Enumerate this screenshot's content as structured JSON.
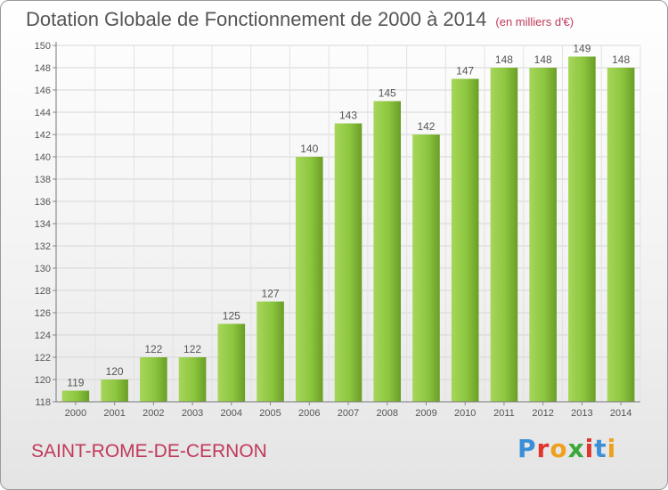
{
  "header": {
    "title": "Dotation Globale de Fonctionnement de 2000 à 2014",
    "subtitle": "(en milliers d'€)"
  },
  "footer": {
    "commune": "SAINT-ROME-DE-CERNON",
    "logo_text": "Proxiti",
    "logo_colors": [
      "#3a8fd6",
      "#e0352b",
      "#f0a020",
      "#3aa83a",
      "#e0352b",
      "#3a8fd6",
      "#f0a020"
    ]
  },
  "chart_data": {
    "type": "bar",
    "categories": [
      "2000",
      "2001",
      "2002",
      "2003",
      "2004",
      "2005",
      "2006",
      "2007",
      "2008",
      "2009",
      "2010",
      "2011",
      "2012",
      "2013",
      "2014"
    ],
    "values": [
      119,
      120,
      122,
      122,
      125,
      127,
      140,
      143,
      145,
      142,
      147,
      148,
      148,
      149,
      148
    ],
    "ylim": [
      118,
      150
    ],
    "yticks": [
      118,
      120,
      122,
      124,
      126,
      128,
      130,
      132,
      134,
      136,
      138,
      140,
      142,
      144,
      146,
      148,
      150
    ],
    "grid": true,
    "bar_color": "#8cc63f",
    "bar_color_dark": "#6a9e27",
    "xlabel": "",
    "ylabel": ""
  }
}
